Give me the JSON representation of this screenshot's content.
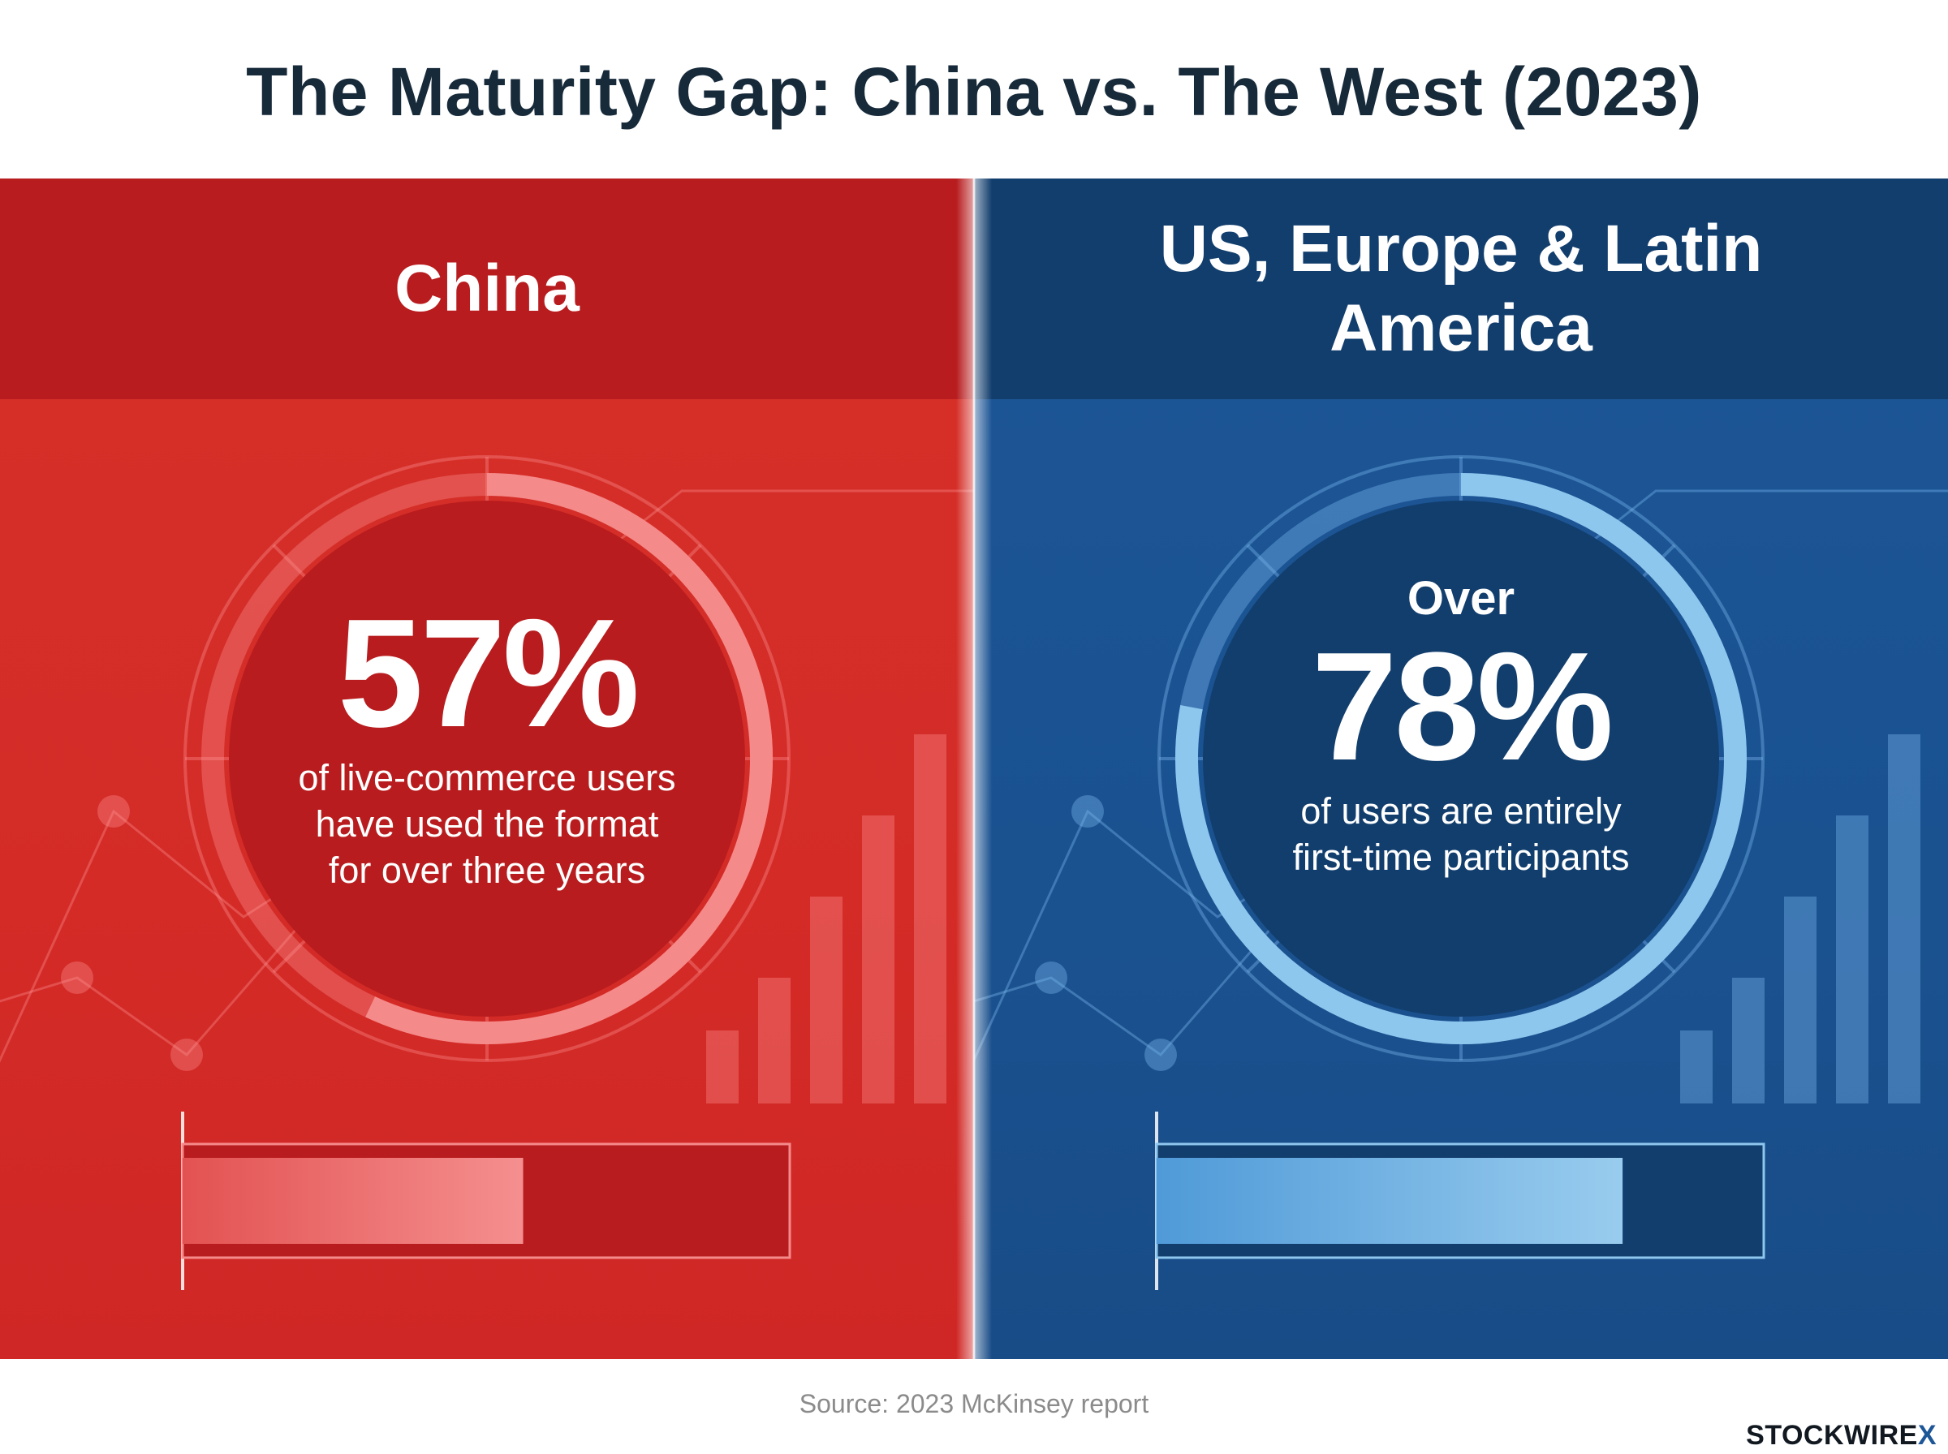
{
  "title": "The Maturity Gap: China vs. The West (2023)",
  "source": "Source: 2023 McKinsey report",
  "brand": {
    "name": "STOCKWIRE",
    "mark": "X"
  },
  "colors": {
    "china": "#d42b27",
    "west": "#1a5290",
    "china_accent": "#f58a8a",
    "west_accent": "#8ec7ee"
  },
  "panels": {
    "china": {
      "heading": "China",
      "prefix": "",
      "value_label": "57%",
      "description": [
        "of live-commerce users",
        "have used the format",
        "for over three years"
      ]
    },
    "west": {
      "heading": "US, Europe & Latin America",
      "prefix": "Over",
      "value_label": "78%",
      "description": [
        "of users are entirely",
        "first-time participants"
      ]
    }
  },
  "chart_data": {
    "type": "bar",
    "title": "The Maturity Gap: China vs. The West (2023)",
    "categories": [
      "China",
      "US, Europe & Latin America"
    ],
    "values": [
      57,
      78
    ],
    "unit": "%",
    "ylim": [
      0,
      100
    ],
    "annotations": [
      "57% of live-commerce users have used the format for over three years",
      "Over 78% of users are entirely first-time participants"
    ]
  }
}
